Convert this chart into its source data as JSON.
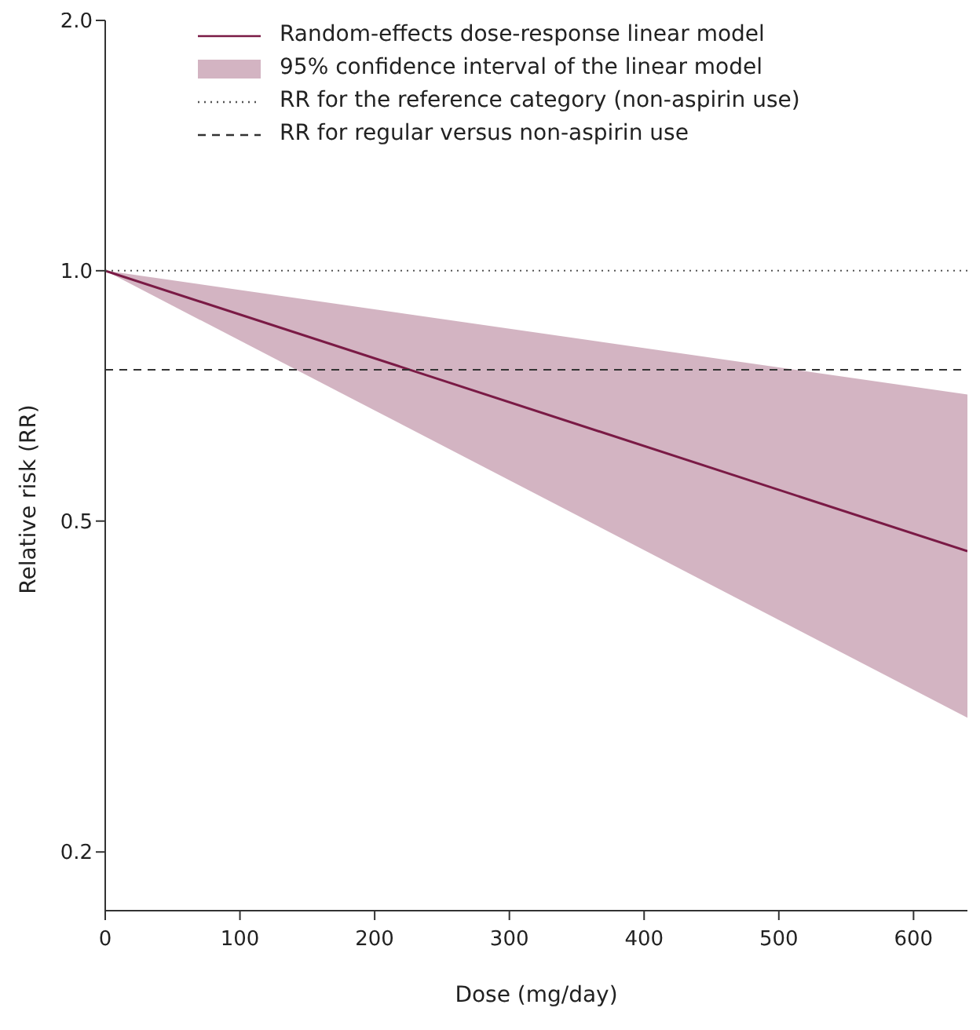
{
  "chart_data": {
    "type": "line",
    "xlabel": "Dose (mg/day)",
    "ylabel": "Relative risk (RR)",
    "log": "y",
    "xlim": [
      0,
      640
    ],
    "xticks": [
      0,
      100,
      200,
      300,
      400,
      500,
      600
    ],
    "ylim": [
      0.17,
      2
    ],
    "yticks": [
      {
        "value": 0.2,
        "label": "0.2"
      },
      {
        "value": 0.5,
        "label": "0.5"
      },
      {
        "value": 1,
        "label": "1.0"
      },
      {
        "value": 2,
        "label": "2.0"
      }
    ],
    "legend": "top",
    "annotations": [
      "95% confidence interval of the linear model"
    ],
    "series": [
      {
        "name": "Random-effects dose-response linear model",
        "color": "#7a1a45",
        "x": [
          0,
          640
        ],
        "values": [
          1,
          0.46
        ],
        "lower": [
          1,
          0.29
        ],
        "upper": [
          1,
          0.71
        ]
      }
    ],
    "ref_lines": [
      {
        "axis": "y",
        "value": 1,
        "label": "RR for the reference category (non-aspirin use)",
        "line_style": "dotted",
        "color": "#555555"
      },
      {
        "axis": "y",
        "value": 0.76,
        "label": "RR for regular versus non-aspirin use",
        "line_style": "dashed",
        "color": "#333333"
      }
    ]
  }
}
